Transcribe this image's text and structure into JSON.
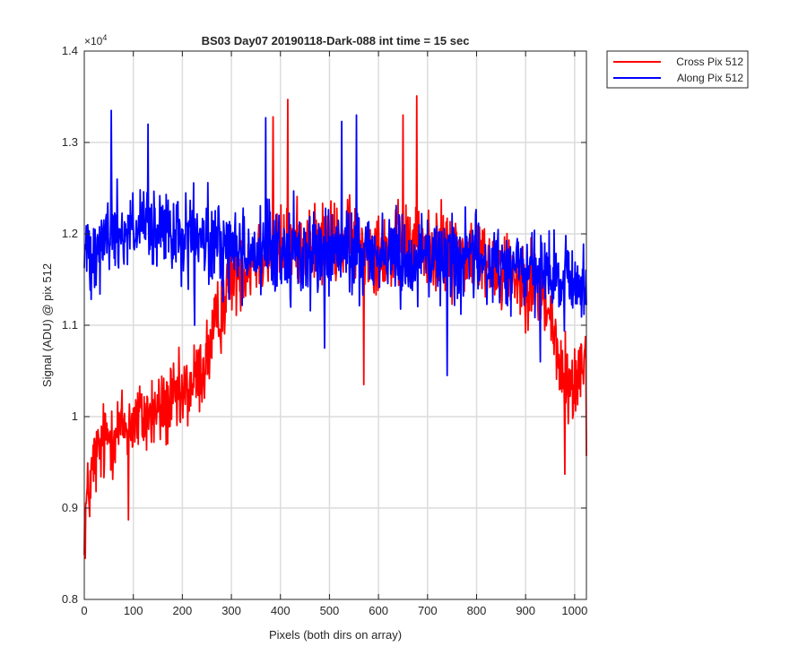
{
  "chart_data": {
    "type": "line",
    "title": "BS03 Day07 20190118-Dark-088 int time = 15 sec",
    "xlabel": "Pixels (both dirs on array)",
    "ylabel": "Signal (ADU) @ pix 512",
    "exponent_label": "×10",
    "exponent_power": "4",
    "xlim": [
      0,
      1024
    ],
    "ylim": [
      8000,
      14000
    ],
    "xticks": [
      0,
      100,
      200,
      300,
      400,
      500,
      600,
      700,
      800,
      900,
      1000
    ],
    "xtick_labels": [
      "0",
      "100",
      "200",
      "300",
      "400",
      "500",
      "600",
      "700",
      "800",
      "900",
      "1000"
    ],
    "yticks": [
      8000,
      9000,
      10000,
      11000,
      12000,
      13000,
      14000
    ],
    "ytick_labels": [
      "0.8",
      "0.9",
      "1",
      "1.1",
      "1.2",
      "1.3",
      "1.4"
    ],
    "grid": true,
    "legend_position": "outside-top-right",
    "series": [
      {
        "name": "Cross Pix 512",
        "color": "#ff0000",
        "trend": {
          "x": [
            0,
            20,
            50,
            100,
            150,
            200,
            240,
            260,
            280,
            300,
            350,
            400,
            450,
            500,
            550,
            600,
            650,
            700,
            750,
            800,
            850,
            900,
            930,
            950,
            970,
            1000,
            1024
          ],
          "y": [
            8900,
            9500,
            9800,
            9950,
            10050,
            10200,
            10500,
            10800,
            11200,
            11550,
            11750,
            11850,
            11900,
            11900,
            11900,
            11850,
            11850,
            11850,
            11800,
            11750,
            11650,
            11500,
            11400,
            11100,
            10500,
            10300,
            10800
          ]
        },
        "noise_amplitude": 450,
        "extremes": [
          {
            "x": 2,
            "y": 8450
          },
          {
            "x": 90,
            "y": 8870
          },
          {
            "x": 415,
            "y": 13470
          },
          {
            "x": 678,
            "y": 13510
          },
          {
            "x": 650,
            "y": 13300
          },
          {
            "x": 570,
            "y": 10350
          },
          {
            "x": 980,
            "y": 9370
          },
          {
            "x": 1024,
            "y": 9570
          },
          {
            "x": 385,
            "y": 13280
          }
        ]
      },
      {
        "name": "Along Pix 512",
        "color": "#0000ff",
        "trend": {
          "x": [
            0,
            50,
            100,
            150,
            200,
            250,
            300,
            350,
            400,
            450,
            500,
            550,
            600,
            650,
            700,
            750,
            800,
            850,
            900,
            950,
            1000,
            1024
          ],
          "y": [
            11800,
            12000,
            12050,
            12000,
            11950,
            11900,
            11850,
            11800,
            11800,
            11800,
            11800,
            11800,
            11800,
            11750,
            11750,
            11750,
            11700,
            11650,
            11600,
            11500,
            11450,
            11450
          ]
        },
        "noise_amplitude": 480,
        "extremes": [
          {
            "x": 55,
            "y": 13350
          },
          {
            "x": 130,
            "y": 13200
          },
          {
            "x": 370,
            "y": 13270
          },
          {
            "x": 555,
            "y": 13300
          },
          {
            "x": 525,
            "y": 13230
          },
          {
            "x": 225,
            "y": 11000
          },
          {
            "x": 490,
            "y": 10750
          },
          {
            "x": 740,
            "y": 10450
          },
          {
            "x": 930,
            "y": 10600
          }
        ]
      }
    ]
  }
}
